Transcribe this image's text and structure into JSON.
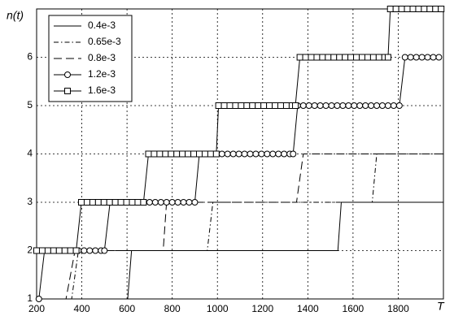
{
  "chart_data": {
    "type": "line",
    "ylabel": "n(t)",
    "xlabel": "T",
    "xlim": [
      200,
      2000
    ],
    "xticks": [
      200,
      400,
      600,
      800,
      1000,
      1200,
      1400,
      1600,
      1800
    ],
    "ylim": [
      1,
      7
    ],
    "yticks": [
      1,
      2,
      3,
      4,
      5,
      6
    ],
    "grid": true,
    "legend": "upper left",
    "series": [
      {
        "name": "0.4e-3",
        "color": "#000000",
        "line_style": "solid",
        "marker": "none",
        "x": [
          200,
          603,
          620,
          1533,
          1548,
          2000
        ],
        "y": [
          1,
          1,
          2,
          2,
          3,
          3
        ]
      },
      {
        "name": "0.65e-3",
        "color": "#000000",
        "line_style": "dashdot",
        "marker": "none",
        "x": [
          200,
          355,
          385,
          955,
          980,
          1685,
          1705,
          2000
        ],
        "y": [
          1,
          1,
          2,
          2,
          3,
          3,
          4,
          4
        ]
      },
      {
        "name": "0.8e-3",
        "color": "#000000",
        "line_style": "dashed",
        "marker": "none",
        "x": [
          200,
          330,
          370,
          760,
          775,
          1350,
          1380,
          2000
        ],
        "y": [
          1,
          1,
          2,
          2,
          3,
          3,
          4,
          4
        ]
      },
      {
        "name": "1.2e-3",
        "color": "#000000",
        "line_style": "solid",
        "marker": "circle",
        "x": [
          210,
          235,
          260,
          285,
          310,
          335,
          360,
          385,
          410,
          435,
          460,
          485,
          500,
          525,
          550,
          575,
          600,
          625,
          650,
          675,
          700,
          725,
          750,
          775,
          800,
          825,
          850,
          875,
          900,
          920,
          945,
          970,
          995,
          1020,
          1045,
          1070,
          1095,
          1120,
          1145,
          1170,
          1195,
          1220,
          1245,
          1270,
          1295,
          1320,
          1335,
          1355,
          1380,
          1405,
          1430,
          1455,
          1480,
          1505,
          1530,
          1555,
          1580,
          1605,
          1630,
          1655,
          1680,
          1705,
          1730,
          1755,
          1780,
          1805,
          1830,
          1855,
          1880,
          1905,
          1930,
          1955,
          1980
        ],
        "y": [
          1,
          2,
          2,
          2,
          2,
          2,
          2,
          2,
          2,
          2,
          2,
          2,
          2,
          3,
          3,
          3,
          3,
          3,
          3,
          3,
          3,
          3,
          3,
          3,
          3,
          3,
          3,
          3,
          3,
          4,
          4,
          4,
          4,
          4,
          4,
          4,
          4,
          4,
          4,
          4,
          4,
          4,
          4,
          4,
          4,
          4,
          4,
          5,
          5,
          5,
          5,
          5,
          5,
          5,
          5,
          5,
          5,
          5,
          5,
          5,
          5,
          5,
          5,
          5,
          5,
          5,
          6,
          6,
          6,
          6,
          6,
          6,
          6
        ]
      },
      {
        "name": "1.6e-3",
        "color": "#000000",
        "line_style": "solid",
        "marker": "square",
        "x": [
          200,
          225,
          250,
          275,
          300,
          325,
          350,
          375,
          398,
          423,
          448,
          473,
          498,
          523,
          548,
          573,
          598,
          623,
          648,
          673,
          695,
          720,
          745,
          770,
          795,
          820,
          845,
          870,
          895,
          920,
          945,
          970,
          995,
          1005,
          1030,
          1055,
          1080,
          1105,
          1130,
          1155,
          1180,
          1205,
          1230,
          1255,
          1280,
          1305,
          1330,
          1345,
          1365,
          1390,
          1415,
          1440,
          1465,
          1490,
          1515,
          1540,
          1565,
          1590,
          1615,
          1640,
          1665,
          1690,
          1715,
          1740,
          1755,
          1765,
          1790,
          1815,
          1840,
          1865,
          1890,
          1915,
          1940,
          1965,
          1990
        ],
        "y": [
          2,
          2,
          2,
          2,
          2,
          2,
          2,
          2,
          3,
          3,
          3,
          3,
          3,
          3,
          3,
          3,
          3,
          3,
          3,
          3,
          4,
          4,
          4,
          4,
          4,
          4,
          4,
          4,
          4,
          4,
          4,
          4,
          4,
          5,
          5,
          5,
          5,
          5,
          5,
          5,
          5,
          5,
          5,
          5,
          5,
          5,
          5,
          5,
          6,
          6,
          6,
          6,
          6,
          6,
          6,
          6,
          6,
          6,
          6,
          6,
          6,
          6,
          6,
          6,
          6,
          7,
          7,
          7,
          7,
          7,
          7,
          7,
          7,
          7,
          7
        ]
      }
    ]
  }
}
